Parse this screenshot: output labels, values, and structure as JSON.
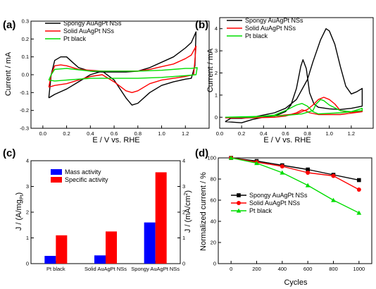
{
  "chart_data": [
    {
      "panel": "(a)",
      "type": "line",
      "xlabel": "E / V vs. RHE",
      "ylabel": "Current / mA",
      "xlim": [
        -0.1,
        1.4
      ],
      "ylim": [
        -0.3,
        0.3
      ],
      "xticks": [
        0.0,
        0.2,
        0.4,
        0.6,
        0.8,
        1.0,
        1.2
      ],
      "yticks": [
        -0.3,
        -0.2,
        -0.1,
        0.0,
        0.1,
        0.2,
        0.3
      ],
      "legend_position": "top",
      "series": [
        {
          "name": "Spongy AuAgPt NSs",
          "color": "#000000",
          "points": [
            [
              0.05,
              -0.13
            ],
            [
              0.1,
              -0.11
            ],
            [
              0.2,
              -0.08
            ],
            [
              0.3,
              -0.04
            ],
            [
              0.4,
              0.0
            ],
            [
              0.5,
              0.02
            ],
            [
              0.6,
              -0.03
            ],
            [
              0.7,
              -0.13
            ],
            [
              0.75,
              -0.17
            ],
            [
              0.8,
              -0.16
            ],
            [
              0.9,
              -0.1
            ],
            [
              1.0,
              -0.06
            ],
            [
              1.1,
              -0.04
            ],
            [
              1.2,
              -0.025
            ],
            [
              1.25,
              -0.02
            ],
            [
              1.28,
              0.05
            ],
            [
              1.29,
              0.24
            ],
            [
              1.25,
              0.18
            ],
            [
              1.2,
              0.15
            ],
            [
              1.1,
              0.1
            ],
            [
              1.0,
              0.07
            ],
            [
              0.9,
              0.04
            ],
            [
              0.8,
              0.02
            ],
            [
              0.7,
              0.015
            ],
            [
              0.6,
              0.015
            ],
            [
              0.5,
              0.015
            ],
            [
              0.4,
              0.02
            ],
            [
              0.3,
              0.04
            ],
            [
              0.25,
              0.07
            ],
            [
              0.2,
              0.1
            ],
            [
              0.15,
              0.1
            ],
            [
              0.1,
              0.08
            ],
            [
              0.07,
              0.0
            ],
            [
              0.05,
              -0.13
            ]
          ]
        },
        {
          "name": "Solid AuAgPt NSs",
          "color": "#ff0000",
          "points": [
            [
              0.05,
              -0.07
            ],
            [
              0.1,
              -0.06
            ],
            [
              0.2,
              -0.05
            ],
            [
              0.3,
              -0.03
            ],
            [
              0.4,
              -0.01
            ],
            [
              0.5,
              0.0
            ],
            [
              0.6,
              -0.04
            ],
            [
              0.7,
              -0.09
            ],
            [
              0.75,
              -0.1
            ],
            [
              0.8,
              -0.09
            ],
            [
              0.9,
              -0.05
            ],
            [
              1.0,
              -0.03
            ],
            [
              1.1,
              -0.02
            ],
            [
              1.2,
              -0.01
            ],
            [
              1.27,
              0.0
            ],
            [
              1.29,
              0.16
            ],
            [
              1.25,
              0.11
            ],
            [
              1.2,
              0.09
            ],
            [
              1.1,
              0.06
            ],
            [
              1.0,
              0.045
            ],
            [
              0.9,
              0.03
            ],
            [
              0.8,
              0.02
            ],
            [
              0.7,
              0.02
            ],
            [
              0.6,
              0.02
            ],
            [
              0.5,
              0.02
            ],
            [
              0.4,
              0.025
            ],
            [
              0.3,
              0.03
            ],
            [
              0.2,
              0.05
            ],
            [
              0.15,
              0.055
            ],
            [
              0.1,
              0.05
            ],
            [
              0.07,
              0.0
            ],
            [
              0.05,
              -0.07
            ]
          ]
        },
        {
          "name": "Pt black",
          "color": "#00dd00",
          "points": [
            [
              0.05,
              -0.03
            ],
            [
              0.1,
              -0.035
            ],
            [
              0.2,
              -0.03
            ],
            [
              0.4,
              -0.02
            ],
            [
              0.6,
              -0.02
            ],
            [
              0.8,
              -0.02
            ],
            [
              1.0,
              -0.015
            ],
            [
              1.2,
              -0.005
            ],
            [
              1.29,
              0.0
            ],
            [
              1.3,
              0.04
            ],
            [
              1.25,
              0.035
            ],
            [
              1.2,
              0.035
            ],
            [
              1.0,
              0.025
            ],
            [
              0.8,
              0.02
            ],
            [
              0.6,
              0.02
            ],
            [
              0.4,
              0.02
            ],
            [
              0.2,
              0.035
            ],
            [
              0.1,
              0.03
            ],
            [
              0.07,
              0.0
            ],
            [
              0.05,
              -0.03
            ]
          ]
        }
      ]
    },
    {
      "panel": "(b)",
      "type": "line",
      "xlabel": "E / V vs. RHE",
      "ylabel": "Current / mA",
      "xlim": [
        0.0,
        1.4
      ],
      "ylim": [
        -0.5,
        4.5
      ],
      "xticks": [
        0.0,
        0.2,
        0.4,
        0.6,
        0.8,
        1.0,
        1.2
      ],
      "yticks": [
        0,
        1,
        2,
        3,
        4
      ],
      "legend_position": "top",
      "series": [
        {
          "name": "Spongy AuAgPt NSs",
          "color": "#000000",
          "points": [
            [
              0.05,
              -0.2
            ],
            [
              0.2,
              -0.25
            ],
            [
              0.3,
              -0.1
            ],
            [
              0.4,
              0.0
            ],
            [
              0.5,
              0.05
            ],
            [
              0.6,
              0.25
            ],
            [
              0.65,
              0.55
            ],
            [
              0.7,
              1.3
            ],
            [
              0.74,
              2.3
            ],
            [
              0.76,
              2.6
            ],
            [
              0.79,
              2.2
            ],
            [
              0.82,
              1.1
            ],
            [
              0.86,
              0.6
            ],
            [
              0.9,
              0.45
            ],
            [
              1.0,
              0.38
            ],
            [
              1.1,
              0.35
            ],
            [
              1.2,
              0.4
            ],
            [
              1.3,
              0.5
            ],
            [
              1.3,
              1.3
            ],
            [
              1.25,
              1.15
            ],
            [
              1.2,
              1.05
            ],
            [
              1.15,
              1.4
            ],
            [
              1.1,
              2.3
            ],
            [
              1.05,
              3.3
            ],
            [
              1.0,
              3.9
            ],
            [
              0.97,
              4.0
            ],
            [
              0.92,
              3.5
            ],
            [
              0.85,
              2.5
            ],
            [
              0.8,
              1.7
            ],
            [
              0.7,
              0.8
            ],
            [
              0.6,
              0.4
            ],
            [
              0.5,
              0.2
            ],
            [
              0.4,
              0.1
            ],
            [
              0.3,
              0.0
            ],
            [
              0.2,
              -0.05
            ],
            [
              0.1,
              -0.05
            ],
            [
              0.05,
              -0.2
            ]
          ]
        },
        {
          "name": "Solid AuAgPt NSs",
          "color": "#ff0000",
          "points": [
            [
              0.05,
              -0.03
            ],
            [
              0.3,
              -0.03
            ],
            [
              0.5,
              0.0
            ],
            [
              0.6,
              0.05
            ],
            [
              0.7,
              0.2
            ],
            [
              0.75,
              0.33
            ],
            [
              0.78,
              0.3
            ],
            [
              0.82,
              0.2
            ],
            [
              0.9,
              0.12
            ],
            [
              1.1,
              0.12
            ],
            [
              1.3,
              0.25
            ],
            [
              1.3,
              0.3
            ],
            [
              1.2,
              0.2
            ],
            [
              1.1,
              0.3
            ],
            [
              1.05,
              0.6
            ],
            [
              1.0,
              0.8
            ],
            [
              0.95,
              0.9
            ],
            [
              0.9,
              0.8
            ],
            [
              0.85,
              0.55
            ],
            [
              0.8,
              0.35
            ],
            [
              0.7,
              0.15
            ],
            [
              0.5,
              0.06
            ],
            [
              0.3,
              0.02
            ],
            [
              0.05,
              -0.03
            ]
          ]
        },
        {
          "name": "Pt black",
          "color": "#00dd00",
          "points": [
            [
              0.05,
              0.0
            ],
            [
              0.3,
              0.0
            ],
            [
              0.5,
              0.1
            ],
            [
              0.6,
              0.3
            ],
            [
              0.7,
              0.55
            ],
            [
              0.75,
              0.62
            ],
            [
              0.8,
              0.5
            ],
            [
              0.85,
              0.25
            ],
            [
              0.9,
              0.15
            ],
            [
              1.1,
              0.2
            ],
            [
              1.3,
              0.3
            ],
            [
              1.3,
              0.4
            ],
            [
              1.2,
              0.25
            ],
            [
              1.1,
              0.3
            ],
            [
              1.0,
              0.55
            ],
            [
              0.95,
              0.75
            ],
            [
              0.92,
              0.8
            ],
            [
              0.88,
              0.6
            ],
            [
              0.85,
              0.3
            ],
            [
              0.75,
              0.15
            ],
            [
              0.6,
              0.08
            ],
            [
              0.4,
              0.04
            ],
            [
              0.2,
              0.02
            ],
            [
              0.05,
              0.0
            ]
          ]
        }
      ]
    },
    {
      "panel": "(c)",
      "type": "bar",
      "ylabel_left": "J / (A/mgPt)",
      "ylabel_right": "J / (mA/cm2)",
      "ylim_left": [
        0,
        4
      ],
      "ylim_right": [
        0,
        4
      ],
      "yticks": [
        0,
        1,
        2,
        3,
        4
      ],
      "categories": [
        "Pt black",
        "Solid AuAgPt NSs",
        "Spongy AuAgPt NSs"
      ],
      "legend_position": "top-left",
      "series": [
        {
          "name": "Mass activity",
          "color": "#0000ff",
          "axis": "left",
          "values": [
            0.3,
            0.32,
            1.6
          ]
        },
        {
          "name": "Specific activity",
          "color": "#ff0000",
          "axis": "right",
          "values": [
            1.1,
            1.25,
            3.55
          ]
        }
      ]
    },
    {
      "panel": "(d)",
      "type": "line",
      "xlabel": "Cycles",
      "ylabel": "Normalized current / %",
      "xlim": [
        -100,
        1100
      ],
      "ylim": [
        0,
        100
      ],
      "xticks": [
        0,
        200,
        400,
        600,
        800,
        1000
      ],
      "yticks": [
        0,
        20,
        40,
        60,
        80,
        100
      ],
      "legend_position": "center-left",
      "series": [
        {
          "name": "Spongy AuAgPt NSs",
          "color": "#000000",
          "marker": "square",
          "x": [
            0,
            200,
            400,
            600,
            800,
            1000
          ],
          "y": [
            100,
            97,
            93,
            89,
            84,
            79
          ]
        },
        {
          "name": "Solid AuAgPt NSs",
          "color": "#ff0000",
          "marker": "circle",
          "x": [
            0,
            200,
            400,
            600,
            800,
            1000
          ],
          "y": [
            100,
            96,
            92,
            86,
            83,
            70
          ]
        },
        {
          "name": "Pt black",
          "color": "#00dd00",
          "marker": "triangle",
          "x": [
            0,
            200,
            400,
            600,
            800,
            1000
          ],
          "y": [
            100,
            95,
            86,
            74,
            60,
            48
          ]
        }
      ]
    }
  ]
}
